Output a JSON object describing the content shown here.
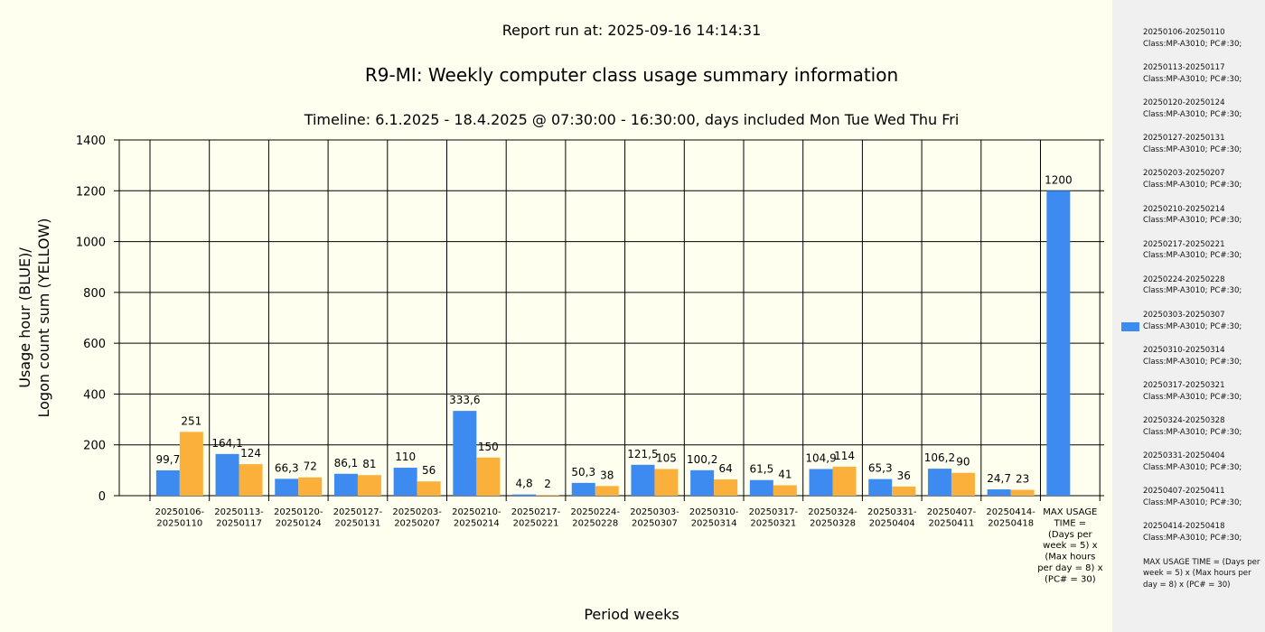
{
  "header": {
    "report_run": "Report run at: 2025-09-16 14:14:31",
    "timeline": "Timeline:  6.1.2025  - 18.4.2025  @  07:30:00 -  16:30:00, days included Mon Tue Wed Thu Fri"
  },
  "colors": {
    "background": "#fffff0",
    "usage": "#3d8bf0",
    "logon": "#fbb03b",
    "legend_bg": "#f0f0f0"
  },
  "chart_data": {
    "type": "bar",
    "title": "R9-MI: Weekly computer class usage summary information",
    "xlabel": "Period weeks",
    "ylabel_lines": [
      "Usage hour (BLUE)/",
      "Logon count sum (YELLOW)"
    ],
    "ylim": [
      0,
      1400
    ],
    "yticks": [
      "0",
      "200",
      "400",
      "600",
      "800",
      "1000",
      "1200",
      "1400"
    ],
    "grid": true,
    "categories": [
      [
        "20250106-",
        "20250110"
      ],
      [
        "20250113-",
        "20250117"
      ],
      [
        "20250120-",
        "20250124"
      ],
      [
        "20250127-",
        "20250131"
      ],
      [
        "20250203-",
        "20250207"
      ],
      [
        "20250210-",
        "20250214"
      ],
      [
        "20250217-",
        "20250221"
      ],
      [
        "20250224-",
        "20250228"
      ],
      [
        "20250303-",
        "20250307"
      ],
      [
        "20250310-",
        "20250314"
      ],
      [
        "20250317-",
        "20250321"
      ],
      [
        "20250324-",
        "20250328"
      ],
      [
        "20250331-",
        "20250404"
      ],
      [
        "20250407-",
        "20250411"
      ],
      [
        "20250414-",
        "20250418"
      ],
      [
        "MAX USAGE",
        "TIME =",
        "(Days per",
        "week = 5) x",
        "(Max hours",
        "per day = 8) x",
        "(PC# = 30)"
      ]
    ],
    "series": [
      {
        "color": "#3d8bf0",
        "values": [
          99.7,
          164.1,
          66.3,
          86.1,
          110,
          333.6,
          4.8,
          50.3,
          121.5,
          100.2,
          61.5,
          104.9,
          65.3,
          106.2,
          24.7,
          1200
        ],
        "labels": [
          "99,7",
          "164,1",
          "66,3",
          "86,1",
          "110",
          "333,6",
          "4,8",
          "50,3",
          "121,5",
          "100,2",
          "61,5",
          "104,9",
          "65,3",
          "106,2",
          "24,7",
          "1200"
        ]
      },
      {
        "color": "#fbb03b",
        "values": [
          251,
          124,
          72,
          81,
          56,
          150,
          2,
          38,
          105,
          64,
          41,
          114,
          36,
          90,
          23,
          null
        ],
        "labels": [
          "251",
          "124",
          "72",
          "81",
          "56",
          "150",
          "2",
          "38",
          "105",
          "64",
          "41",
          "114",
          "36",
          "90",
          "23",
          ""
        ]
      }
    ]
  },
  "legend": {
    "items": [
      {
        "lines": [
          "20250106-20250110",
          "Class:MP-A3010; PC#:30;"
        ]
      },
      {
        "lines": [
          "20250113-20250117",
          "Class:MP-A3010; PC#:30;"
        ]
      },
      {
        "lines": [
          "20250120-20250124",
          "Class:MP-A3010; PC#:30;"
        ]
      },
      {
        "lines": [
          "20250127-20250131",
          "Class:MP-A3010; PC#:30;"
        ]
      },
      {
        "lines": [
          "20250203-20250207",
          "Class:MP-A3010; PC#:30;"
        ]
      },
      {
        "lines": [
          "20250210-20250214",
          "Class:MP-A3010; PC#:30;"
        ]
      },
      {
        "lines": [
          "20250217-20250221",
          "Class:MP-A3010; PC#:30;"
        ]
      },
      {
        "lines": [
          "20250224-20250228",
          "Class:MP-A3010; PC#:30;"
        ]
      },
      {
        "lines": [
          "20250303-20250307",
          "Class:MP-A3010; PC#:30;"
        ],
        "swatch": true
      },
      {
        "lines": [
          "20250310-20250314",
          "Class:MP-A3010; PC#:30;"
        ]
      },
      {
        "lines": [
          "20250317-20250321",
          "Class:MP-A3010; PC#:30;"
        ]
      },
      {
        "lines": [
          "20250324-20250328",
          "Class:MP-A3010; PC#:30;"
        ]
      },
      {
        "lines": [
          "20250331-20250404",
          "Class:MP-A3010; PC#:30;"
        ]
      },
      {
        "lines": [
          "20250407-20250411",
          "Class:MP-A3010; PC#:30;"
        ]
      },
      {
        "lines": [
          "20250414-20250418",
          "Class:MP-A3010; PC#:30;"
        ]
      }
    ],
    "max_note": "MAX USAGE TIME = (Days per week = 5) x (Max hours per day = 8) x (PC# = 30)"
  }
}
